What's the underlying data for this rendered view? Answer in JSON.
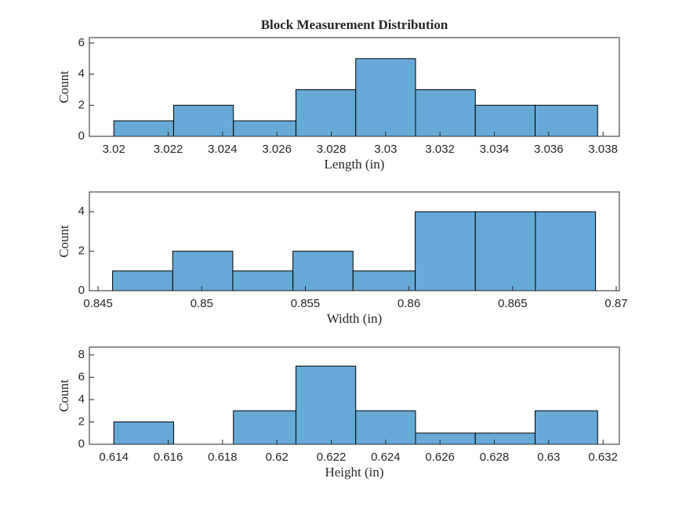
{
  "chart_data": [
    {
      "type": "histogram",
      "title": "Block Measurement Distribution",
      "xlabel": "Length (in)",
      "ylabel": "Count",
      "bins": [
        3.02,
        3.0222,
        3.0244,
        3.0267,
        3.0289,
        3.0311,
        3.0333,
        3.0355,
        3.0378
      ],
      "values": [
        1,
        2,
        1,
        3,
        5,
        3,
        2,
        2
      ],
      "color": "#66aad7",
      "xlim": [
        3.0191,
        3.0386
      ],
      "xticks": [
        3.02,
        3.022,
        3.024,
        3.026,
        3.028,
        3.03,
        3.032,
        3.034,
        3.036,
        3.038
      ],
      "ylim": [
        0,
        6.35
      ],
      "yticks": [
        0,
        2,
        4,
        6
      ]
    },
    {
      "type": "histogram",
      "xlabel": "Width (in)",
      "ylabel": "Count",
      "bins": [
        0.8457,
        0.8486,
        0.8515,
        0.8544,
        0.8573,
        0.8603,
        0.8632,
        0.8661,
        0.869
      ],
      "values": [
        1,
        2,
        1,
        2,
        1,
        4,
        4,
        4
      ],
      "color": "#66aad7",
      "xlim": [
        0.84458,
        0.87015
      ],
      "xticks": [
        0.845,
        0.85,
        0.855,
        0.86,
        0.865,
        0.87
      ],
      "ylim": [
        0,
        5
      ],
      "yticks": [
        0,
        2,
        4
      ]
    },
    {
      "type": "histogram",
      "xlabel": "Height (in)",
      "ylabel": "Count",
      "bins": [
        0.614,
        0.6162,
        0.6184,
        0.6207,
        0.6229,
        0.6251,
        0.6273,
        0.6295,
        0.6318
      ],
      "values": [
        2,
        0,
        3,
        7,
        3,
        1,
        1,
        3
      ],
      "color": "#66aad7",
      "xlim": [
        0.6131,
        0.6326
      ],
      "xticks": [
        0.614,
        0.616,
        0.618,
        0.62,
        0.622,
        0.624,
        0.626,
        0.628,
        0.63,
        0.632
      ],
      "ylim": [
        0,
        8.7
      ],
      "yticks": [
        0,
        2,
        4,
        6,
        8
      ]
    }
  ]
}
